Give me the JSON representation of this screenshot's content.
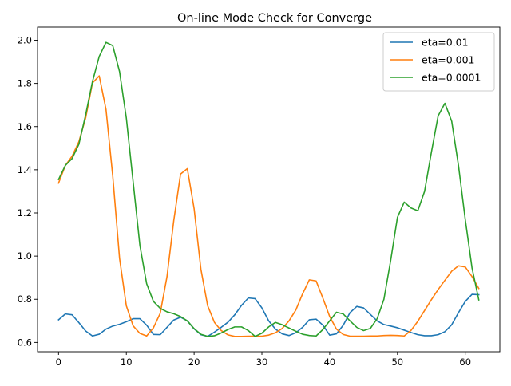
{
  "chart_data": {
    "type": "line",
    "title": "On-line Mode Check for Converge",
    "xlabel": "",
    "ylabel": "",
    "xlim": [
      -3.1,
      65.1
    ],
    "ylim": [
      0.557,
      2.061
    ],
    "xticks": [
      0,
      10,
      20,
      30,
      40,
      50,
      60
    ],
    "yticks": [
      0.6,
      0.8,
      1.0,
      1.2,
      1.4,
      1.6,
      1.8,
      2.0
    ],
    "xtick_labels": [
      "0",
      "10",
      "20",
      "30",
      "40",
      "50",
      "60"
    ],
    "ytick_labels": [
      "0.6",
      "0.8",
      "1.0",
      "1.2",
      "1.4",
      "1.6",
      "1.8",
      "2.0"
    ],
    "grid": false,
    "legend_position": "top-right",
    "x": [
      0,
      1,
      2,
      3,
      4,
      5,
      6,
      7,
      8,
      9,
      10,
      11,
      12,
      13,
      14,
      15,
      16,
      17,
      18,
      19,
      20,
      21,
      22,
      23,
      24,
      25,
      26,
      27,
      28,
      29,
      30,
      31,
      32,
      33,
      34,
      35,
      36,
      37,
      38,
      39,
      40,
      41,
      42,
      43,
      44,
      45,
      46,
      47,
      48,
      49,
      50,
      51,
      52,
      53,
      54,
      55,
      56,
      57,
      58,
      59,
      60,
      61,
      62
    ],
    "series": [
      {
        "name": "eta=0.01",
        "color": "#1f77b4",
        "values": [
          0.705,
          0.732,
          0.728,
          0.692,
          0.653,
          0.63,
          0.638,
          0.662,
          0.676,
          0.684,
          0.696,
          0.71,
          0.71,
          0.68,
          0.637,
          0.636,
          0.67,
          0.704,
          0.717,
          0.7,
          0.663,
          0.636,
          0.628,
          0.648,
          0.67,
          0.694,
          0.728,
          0.772,
          0.806,
          0.803,
          0.76,
          0.7,
          0.662,
          0.64,
          0.632,
          0.645,
          0.67,
          0.705,
          0.708,
          0.68,
          0.634,
          0.64,
          0.68,
          0.738,
          0.767,
          0.76,
          0.73,
          0.7,
          0.683,
          0.676,
          0.668,
          0.657,
          0.646,
          0.636,
          0.631,
          0.631,
          0.636,
          0.65,
          0.682,
          0.738,
          0.79,
          0.823,
          0.821
        ]
      },
      {
        "name": "eta=0.001",
        "color": "#ff7f0e",
        "values": [
          1.338,
          1.42,
          1.463,
          1.53,
          1.64,
          1.802,
          1.835,
          1.68,
          1.37,
          0.99,
          0.77,
          0.677,
          0.642,
          0.63,
          0.668,
          0.735,
          0.905,
          1.165,
          1.38,
          1.405,
          1.22,
          0.94,
          0.77,
          0.693,
          0.655,
          0.635,
          0.628,
          0.628,
          0.629,
          0.629,
          0.629,
          0.634,
          0.645,
          0.665,
          0.7,
          0.75,
          0.825,
          0.89,
          0.885,
          0.805,
          0.72,
          0.662,
          0.637,
          0.629,
          0.629,
          0.629,
          0.63,
          0.63,
          0.632,
          0.633,
          0.632,
          0.63,
          0.656,
          0.698,
          0.748,
          0.798,
          0.845,
          0.888,
          0.93,
          0.955,
          0.95,
          0.905,
          0.85
        ]
      },
      {
        "name": "eta=0.0001",
        "color": "#2ca02c",
        "values": [
          1.355,
          1.42,
          1.452,
          1.518,
          1.655,
          1.808,
          1.925,
          1.99,
          1.975,
          1.855,
          1.64,
          1.345,
          1.05,
          0.872,
          0.79,
          0.758,
          0.742,
          0.733,
          0.72,
          0.7,
          0.664,
          0.638,
          0.628,
          0.631,
          0.644,
          0.66,
          0.672,
          0.672,
          0.655,
          0.628,
          0.643,
          0.672,
          0.693,
          0.682,
          0.667,
          0.652,
          0.638,
          0.632,
          0.63,
          0.66,
          0.7,
          0.74,
          0.732,
          0.7,
          0.67,
          0.655,
          0.665,
          0.71,
          0.8,
          0.98,
          1.18,
          1.25,
          1.223,
          1.21,
          1.3,
          1.48,
          1.65,
          1.708,
          1.625,
          1.42,
          1.17,
          0.945,
          0.797
        ]
      }
    ]
  }
}
